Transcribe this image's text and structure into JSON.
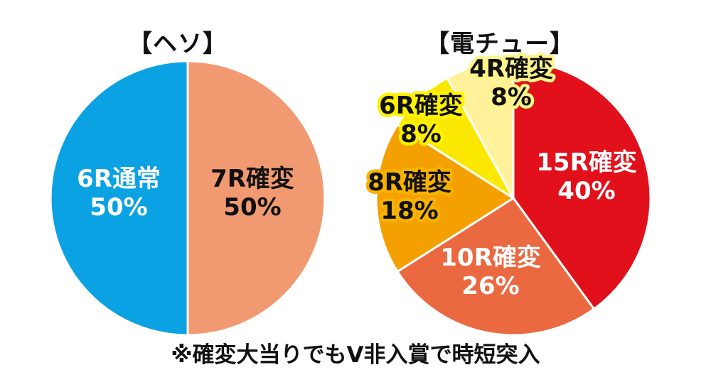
{
  "chart_data": [
    {
      "type": "pie",
      "title": "【ヘソ】",
      "slices": [
        {
          "label": "7R確変",
          "value": 50,
          "value_text": "50%",
          "color": "#f19a72",
          "text_color": "#111111"
        },
        {
          "label": "6R通常",
          "value": 50,
          "value_text": "50%",
          "color": "#0aa2e2",
          "text_color": "#ffffff"
        }
      ]
    },
    {
      "type": "pie",
      "title": "【電チュー】",
      "slices": [
        {
          "label": "15R確変",
          "value": 40,
          "value_text": "40%",
          "color": "#e2101b",
          "text_color": "#ffffff"
        },
        {
          "label": "10R確変",
          "value": 26,
          "value_text": "26%",
          "color": "#ea6941",
          "text_color": "#ffffff"
        },
        {
          "label": "8R確変",
          "value": 18,
          "value_text": "18%",
          "color": "#f4a000",
          "text_color": "#111111",
          "outline": "#f7b200"
        },
        {
          "label": "6R確変",
          "value": 8,
          "value_text": "8%",
          "color": "#fbe800",
          "text_color": "#111111",
          "outline": "#fff100"
        },
        {
          "label": "4R確変",
          "value": 8,
          "value_text": "8%",
          "color": "#fff29a",
          "text_color": "#111111",
          "outline": "#fff48a"
        }
      ]
    }
  ],
  "footnote": "※確変大当りでもV非入賞で時短突入"
}
